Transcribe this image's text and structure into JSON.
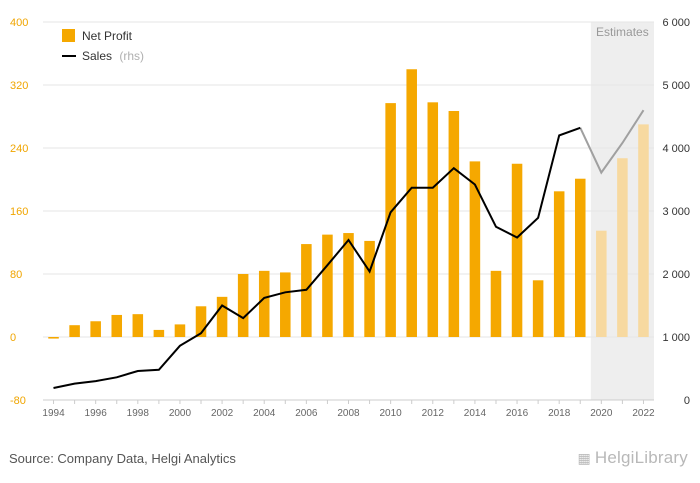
{
  "chart_data": {
    "type": "bar",
    "title": "",
    "categories": [
      1994,
      1995,
      1996,
      1997,
      1998,
      1999,
      2000,
      2001,
      2002,
      2003,
      2004,
      2005,
      2006,
      2007,
      2008,
      2009,
      2010,
      2011,
      2012,
      2013,
      2014,
      2015,
      2016,
      2017,
      2018,
      2019,
      2020,
      2021,
      2022
    ],
    "x_tick_labels": [
      "1994",
      "1996",
      "1998",
      "2000",
      "2002",
      "2004",
      "2006",
      "2008",
      "2010",
      "2012",
      "2014",
      "2016",
      "2018",
      "2020",
      "2022"
    ],
    "series": [
      {
        "name": "Net Profit",
        "type": "bar",
        "axis": "left",
        "color": "#f5a800",
        "estimate_color": "#f7d9a0",
        "values": [
          -2,
          15,
          20,
          28,
          29,
          9,
          16,
          39,
          51,
          80,
          84,
          82,
          118,
          130,
          132,
          122,
          297,
          340,
          298,
          287,
          223,
          84,
          220,
          72,
          185,
          201,
          135,
          227,
          270
        ]
      },
      {
        "name": "Sales",
        "name_suffix": "(rhs)",
        "type": "line",
        "axis": "right",
        "color": "#000000",
        "estimate_color": "#a0a0a0",
        "values": [
          190,
          260,
          300,
          360,
          460,
          480,
          860,
          1060,
          1500,
          1300,
          1620,
          1710,
          1750,
          2140,
          2540,
          2040,
          2980,
          3370,
          3370,
          3680,
          3420,
          2750,
          2580,
          2890,
          4200,
          4320,
          3610,
          4080,
          4600
        ]
      }
    ],
    "y_left": {
      "min": -80,
      "max": 400,
      "ticks": [
        -80,
        0,
        80,
        160,
        240,
        320,
        400
      ],
      "tick_labels": [
        "-80",
        "0",
        "80",
        "160",
        "240",
        "320",
        "400"
      ],
      "color": "#f0a500"
    },
    "y_right": {
      "min": 0,
      "max": 6000,
      "ticks": [
        0,
        1000,
        2000,
        3000,
        4000,
        5000,
        6000
      ],
      "tick_labels": [
        "0",
        "1 000",
        "2 000",
        "3 000",
        "4 000",
        "5 000",
        "6 000"
      ],
      "color": "#333333"
    },
    "estimates": {
      "label": "Estimates",
      "from": 2019.5,
      "to": 2022.5,
      "background": "#eeeeee"
    },
    "grid": true,
    "legend": {
      "position": "top-left"
    }
  },
  "footer": {
    "source": "Source: Company Data, Helgi Analytics",
    "logo": "HelgiLibrary",
    "logo_icon": "logo-icon"
  }
}
